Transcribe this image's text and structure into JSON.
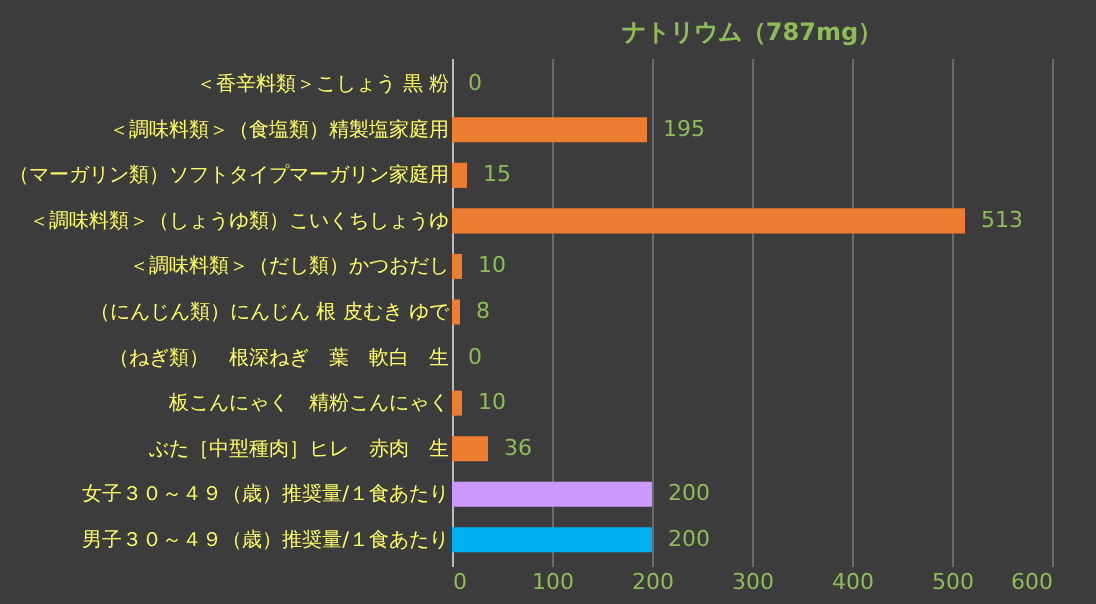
{
  "chart_data": {
    "type": "bar",
    "orientation": "horizontal",
    "title": "ナトリウム（787mg）",
    "categories": [
      "＜香辛料類＞こしょう 黒 粉",
      "＜調味料類＞（食塩類）精製塩家庭用",
      "（マーガリン類）ソフトタイプマーガリン家庭用",
      "＜調味料類＞（しょうゆ類）こいくちしょうゆ",
      "＜調味料類＞（だし類）かつおだし",
      "（にんじん類）にんじん 根 皮むき ゆで",
      "（ねぎ類）　根深ねぎ　葉　軟白　生",
      "板こんにゃく　精粉こんにゃく",
      "ぶた［中型種肉］ヒレ　赤肉　生",
      "女子３０～４９（歳）推奨量/１食あたり",
      "男子３０～４９（歳）推奨量/１食あたり"
    ],
    "values": [
      0,
      195,
      15,
      513,
      10,
      8,
      0,
      10,
      36,
      200,
      200
    ],
    "colors": [
      "#ed7d31",
      "#ed7d31",
      "#ed7d31",
      "#ed7d31",
      "#ed7d31",
      "#ed7d31",
      "#ed7d31",
      "#ed7d31",
      "#ed7d31",
      "#cc99ff",
      "#00b0f0"
    ],
    "xlim": [
      0,
      600
    ],
    "xticks": [
      0,
      100,
      200,
      300,
      400,
      500,
      600
    ],
    "grid": "x",
    "data_labels": true
  }
}
